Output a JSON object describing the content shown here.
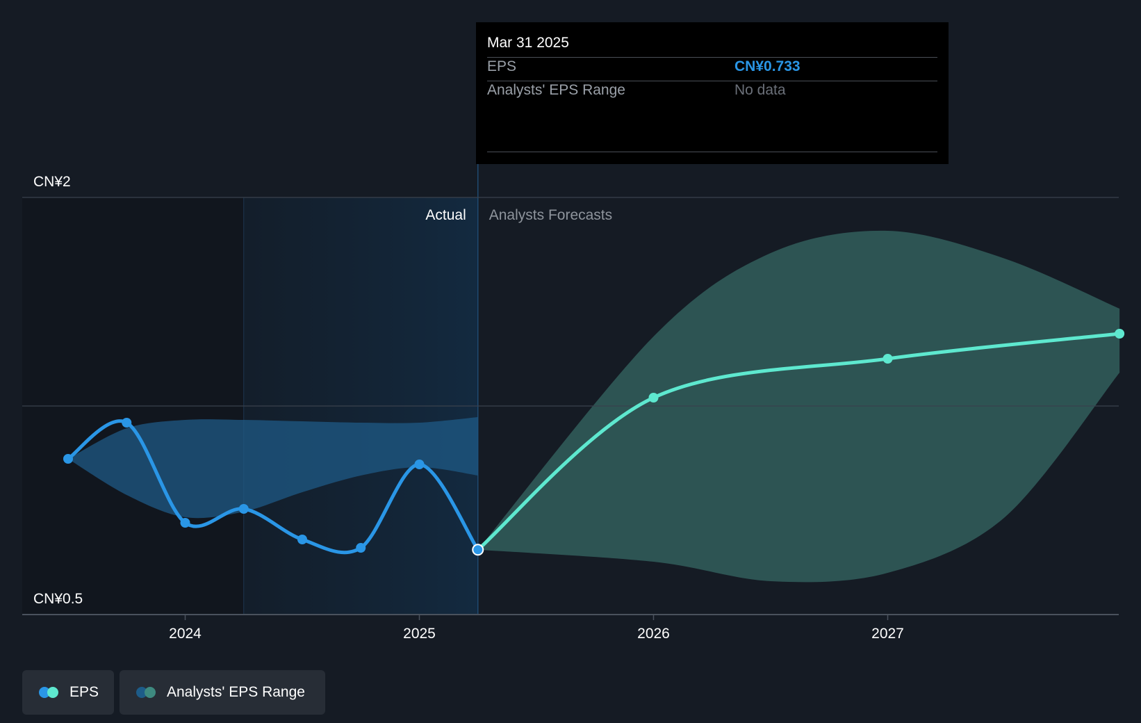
{
  "tooltip": {
    "date": "Mar 31 2025",
    "rows": [
      {
        "label": "EPS",
        "value": "CN¥0.733",
        "value_color": "#2a96e6"
      },
      {
        "label": "Analysts' EPS Range",
        "value": "No data",
        "value_color": "#6b7079"
      }
    ]
  },
  "sections": {
    "actual": "Actual",
    "forecast": "Analysts Forecasts"
  },
  "legend": [
    {
      "label": "EPS",
      "colors": [
        "#2a96e6",
        "#5ee8cf"
      ]
    },
    {
      "label": "Analysts' EPS Range",
      "colors": [
        "#1d5c89",
        "#3e8a80"
      ]
    }
  ],
  "colors": {
    "background": "#151b24",
    "eps_actual": "#2a96e6",
    "eps_forecast": "#5ee8cf",
    "range_actual": "#1f5a86",
    "range_forecast": "#2e5756"
  },
  "chart_data": {
    "type": "line",
    "y_tick_labels": [
      {
        "value": 2.0,
        "label": "CN¥2"
      },
      {
        "value": 0.5,
        "label": "CN¥0.5"
      }
    ],
    "ylim": [
      0.5,
      2.0
    ],
    "xlim": [
      2023.3,
      2027.99
    ],
    "x_ticks": [
      2024,
      2025,
      2026,
      2027
    ],
    "x_tick_labels": [
      "2024",
      "2025",
      "2026",
      "2027"
    ],
    "gridlines_y": [
      2.0,
      1.25,
      0.5
    ],
    "highlight_start": 2024.25,
    "actual_end": 2025.25,
    "series": [
      {
        "kind": "actual",
        "points": [
          {
            "x": 2023.5,
            "y": 1.06
          },
          {
            "x": 2023.75,
            "y": 1.19
          },
          {
            "x": 2024.0,
            "y": 0.83
          },
          {
            "x": 2024.25,
            "y": 0.88
          },
          {
            "x": 2024.5,
            "y": 0.77
          },
          {
            "x": 2024.75,
            "y": 0.74
          },
          {
            "x": 2025.0,
            "y": 1.04
          },
          {
            "x": 2025.25,
            "y": 0.733
          }
        ]
      },
      {
        "kind": "forecast",
        "points": [
          {
            "x": 2025.25,
            "y": 0.733
          },
          {
            "x": 2026.0,
            "y": 1.28
          },
          {
            "x": 2027.0,
            "y": 1.42
          },
          {
            "x": 2027.99,
            "y": 1.51
          }
        ]
      }
    ],
    "range_actual": {
      "x": [
        2023.5,
        2023.75,
        2024.0,
        2024.25,
        2024.5,
        2024.75,
        2025.0,
        2025.25
      ],
      "high": [
        1.06,
        1.17,
        1.2,
        1.2,
        1.195,
        1.19,
        1.19,
        1.21
      ],
      "low": [
        1.06,
        0.93,
        0.85,
        0.87,
        0.94,
        1.0,
        1.03,
        1.0
      ]
    },
    "range_forecast": {
      "x": [
        2025.25,
        2026.0,
        2026.5,
        2027.0,
        2027.5,
        2027.99
      ],
      "high": [
        0.733,
        1.5,
        1.8,
        1.88,
        1.78,
        1.6
      ],
      "low": [
        0.733,
        0.69,
        0.62,
        0.65,
        0.85,
        1.37
      ]
    }
  }
}
